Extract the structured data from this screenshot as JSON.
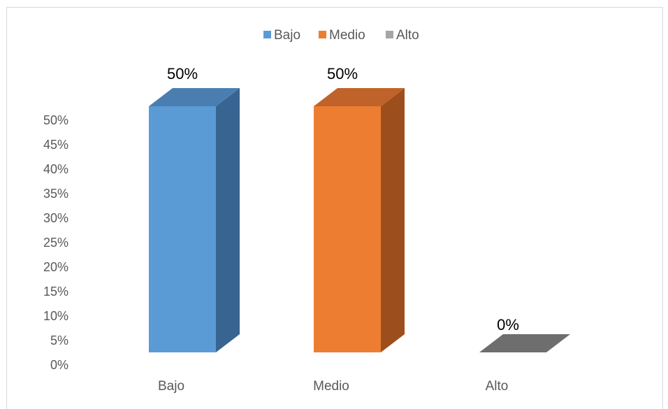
{
  "chart_data": {
    "type": "bar",
    "categories": [
      "Bajo",
      "Medio",
      "Alto"
    ],
    "values": [
      50,
      50,
      0
    ],
    "data_labels": [
      "50%",
      "50%",
      "0%"
    ],
    "y_ticks": [
      "0%",
      "5%",
      "10%",
      "15%",
      "20%",
      "25%",
      "30%",
      "35%",
      "40%",
      "45%",
      "50%"
    ],
    "ylim": [
      0,
      50
    ],
    "legend": {
      "placement": "top",
      "entries": [
        "Bajo",
        "Medio",
        "Alto"
      ]
    },
    "colors": {
      "Bajo": {
        "front": "#5b9bd5",
        "side": "#376491",
        "top": "#4a7eb0"
      },
      "Medio": {
        "front": "#ed7d31",
        "side": "#9c4f1c",
        "top": "#c0632a"
      },
      "Alto": {
        "front": "#a5a5a5",
        "side": "#6e6e6e",
        "top": "#8a8a8a"
      }
    },
    "style": "3d-column",
    "grid": false
  }
}
